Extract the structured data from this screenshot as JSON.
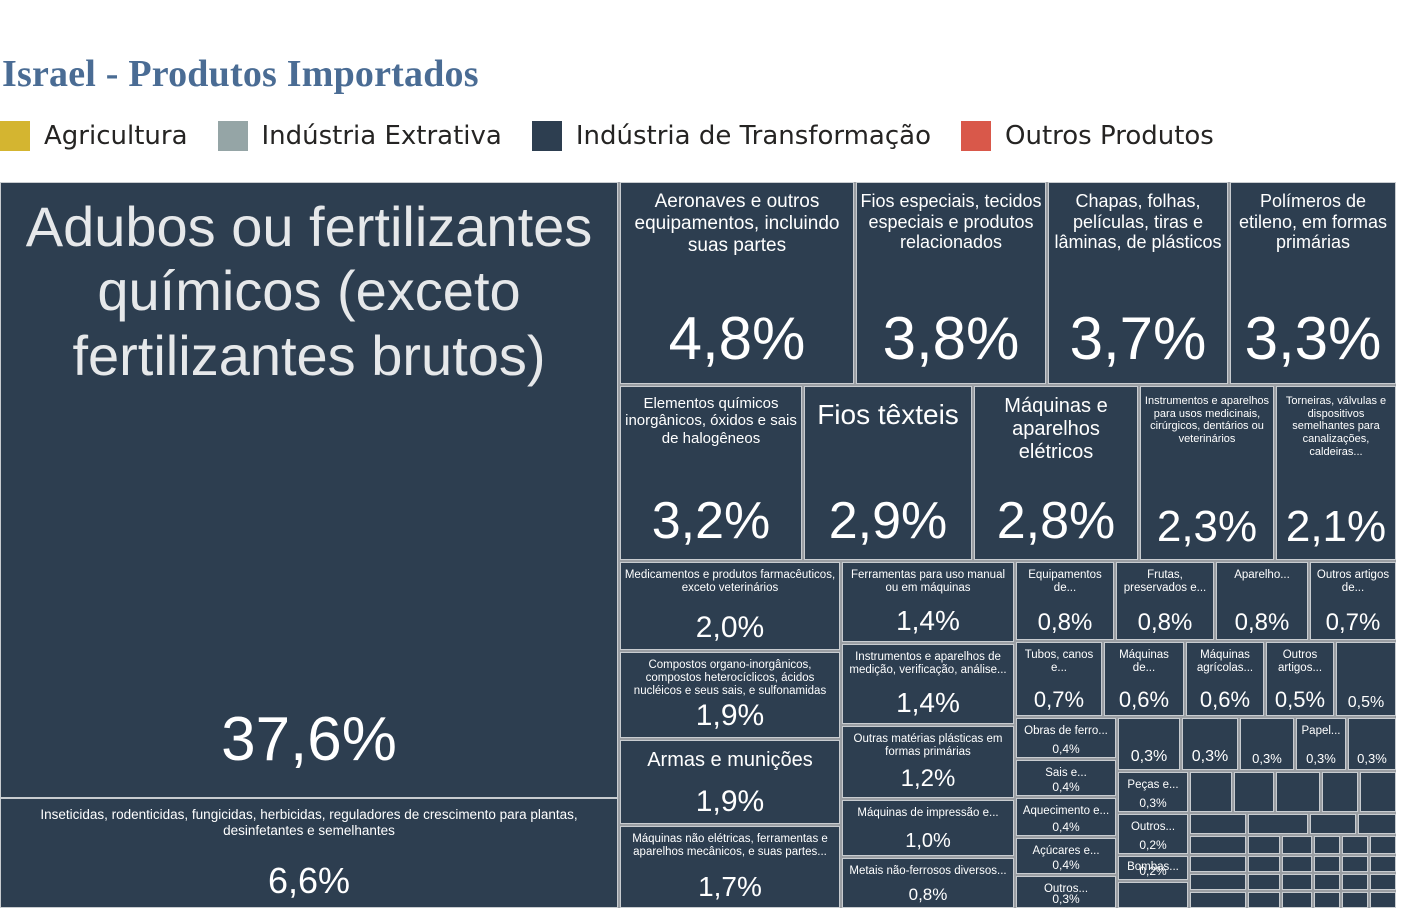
{
  "chart_data": {
    "type": "treemap",
    "title": "Israel - Produtos Importados",
    "legend": [
      {
        "name": "Agricultura",
        "color": "#d4b530"
      },
      {
        "name": "Indústria Extrativa",
        "color": "#95a5a6"
      },
      {
        "name": "Indústria de Transformação",
        "color": "#2d3e50"
      },
      {
        "name": "Outros Produtos",
        "color": "#d9584a"
      }
    ],
    "colors": {
      "tile": "#2d3e50",
      "tile_border": "#c8ccd0",
      "title": "#4a6c94"
    },
    "items": [
      {
        "label": "Adubos ou fertilizantes químicos (exceto fertilizantes brutos)",
        "value": 37.6,
        "value_label": "37,6%"
      },
      {
        "label": "Inseticidas, rodenticidas, fungicidas, herbicidas, reguladores de crescimento para plantas, desinfetantes e semelhantes",
        "value": 6.6,
        "value_label": "6,6%"
      },
      {
        "label": "Aeronaves e outros equipamentos, incluindo suas partes",
        "value": 4.8,
        "value_label": "4,8%"
      },
      {
        "label": "Fios especiais, tecidos especiais e produtos relacionados",
        "value": 3.8,
        "value_label": "3,8%"
      },
      {
        "label": "Chapas, folhas, películas, tiras e lâminas, de plásticos",
        "value": 3.7,
        "value_label": "3,7%"
      },
      {
        "label": "Polímeros de etileno, em formas primárias",
        "value": 3.3,
        "value_label": "3,3%"
      },
      {
        "label": "Elementos químicos inorgânicos, óxidos e sais de halogêneos",
        "value": 3.2,
        "value_label": "3,2%"
      },
      {
        "label": "Fios têxteis",
        "value": 2.9,
        "value_label": "2,9%"
      },
      {
        "label": "Máquinas e aparelhos elétricos",
        "value": 2.8,
        "value_label": "2,8%"
      },
      {
        "label": "Instrumentos e aparelhos para usos medicinais, cirúrgicos, dentários ou veterinários",
        "value": 2.3,
        "value_label": "2,3%"
      },
      {
        "label": "Torneiras, válvulas e dispositivos semelhantes para canalizações, caldeiras...",
        "value": 2.1,
        "value_label": "2,1%"
      },
      {
        "label": "Medicamentos e produtos farmacêuticos, exceto veterinários",
        "value": 2.0,
        "value_label": "2,0%"
      },
      {
        "label": "Compostos organo-inorgânicos, compostos heterocíclicos, ácidos nucléicos e seus sais, e sulfonamidas",
        "value": 1.9,
        "value_label": "1,9%"
      },
      {
        "label": "Armas e munições",
        "value": 1.9,
        "value_label": "1,9%"
      },
      {
        "label": "Máquinas não elétricas, ferramentas e aparelhos mecânicos, e suas partes...",
        "value": 1.7,
        "value_label": "1,7%"
      },
      {
        "label": "Ferramentas para uso manual ou em máquinas",
        "value": 1.4,
        "value_label": "1,4%"
      },
      {
        "label": "Instrumentos e aparelhos de medição, verificação, análise...",
        "value": 1.4,
        "value_label": "1,4%"
      },
      {
        "label": "Outras matérias plásticas em formas primárias",
        "value": 1.2,
        "value_label": "1,2%"
      },
      {
        "label": "Máquinas de impressão e...",
        "value": 1.0,
        "value_label": "1,0%"
      },
      {
        "label": "Metais não-ferrosos diversos...",
        "value": 0.8,
        "value_label": "0,8%"
      },
      {
        "label": "Equipamentos de...",
        "value": 0.8,
        "value_label": "0,8%"
      },
      {
        "label": "Frutas, preservados e...",
        "value": 0.8,
        "value_label": "0,8%"
      },
      {
        "label": "Aparelho...",
        "value": 0.8,
        "value_label": "0,8%"
      },
      {
        "label": "Outros artigos de...",
        "value": 0.7,
        "value_label": "0,7%"
      },
      {
        "label": "Tubos, canos e...",
        "value": 0.7,
        "value_label": "0,7%"
      },
      {
        "label": "Máquinas de...",
        "value": 0.6,
        "value_label": "0,6%"
      },
      {
        "label": "Máquinas agrícolas...",
        "value": 0.6,
        "value_label": "0,6%"
      },
      {
        "label": "Outros artigos...",
        "value": 0.5,
        "value_label": "0,5%"
      },
      {
        "label": "",
        "value": 0.5,
        "value_label": "0,5%"
      },
      {
        "label": "Obras de ferro...",
        "value": 0.4,
        "value_label": "0,4%"
      },
      {
        "label": "Sais e...",
        "value": 0.4,
        "value_label": "0,4%"
      },
      {
        "label": "Aquecimento e...",
        "value": 0.4,
        "value_label": "0,4%"
      },
      {
        "label": "Açúcares e...",
        "value": 0.4,
        "value_label": "0,4%"
      },
      {
        "label": "Outros...",
        "value": 0.3,
        "value_label": "0,3%"
      },
      {
        "label": "",
        "value": 0.3,
        "value_label": "0,3%"
      },
      {
        "label": "",
        "value": 0.3,
        "value_label": "0,3%"
      },
      {
        "label": "",
        "value": 0.3,
        "value_label": "0,3%"
      },
      {
        "label": "Papel...",
        "value": 0.3,
        "value_label": "0,3%"
      },
      {
        "label": "",
        "value": 0.3,
        "value_label": "0,3%"
      },
      {
        "label": "Peças e...",
        "value": 0.3,
        "value_label": "0,3%"
      },
      {
        "label": "Outros...",
        "value": 0.2,
        "value_label": "0,2%"
      },
      {
        "label": "Bombas...",
        "value": 0.2,
        "value_label": "0,2%"
      }
    ]
  }
}
